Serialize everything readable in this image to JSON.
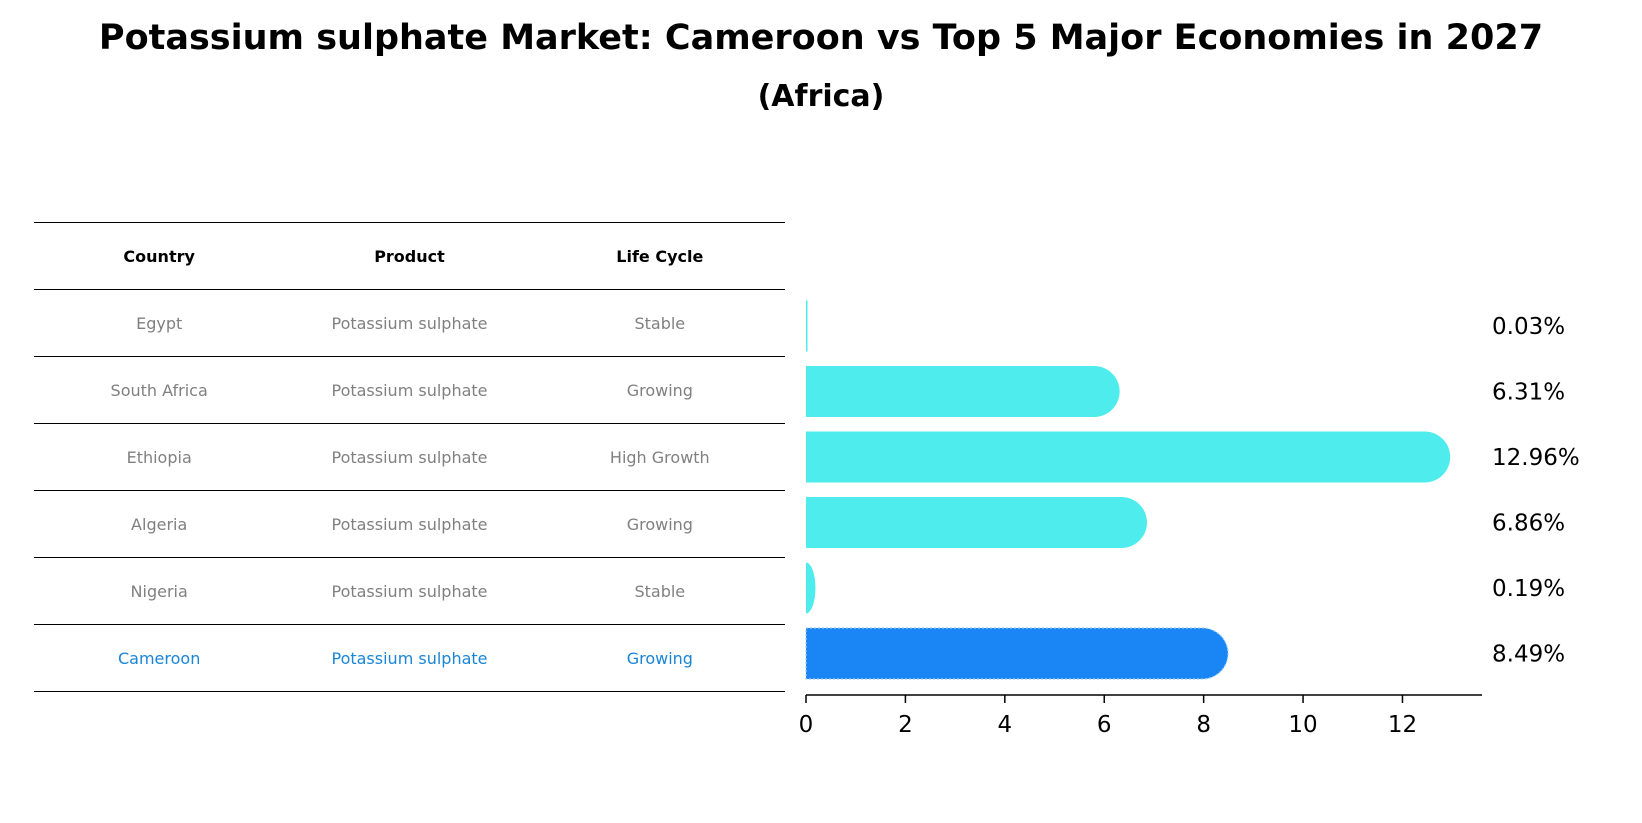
{
  "title": "Potassium sulphate Market: Cameroon vs Top 5 Major Economies in 2027",
  "subtitle": "(Africa)",
  "table": {
    "headers": [
      "Country",
      "Product",
      "Life Cycle"
    ],
    "rows": [
      {
        "country": "Egypt",
        "product": "Potassium sulphate",
        "life_cycle": "Stable"
      },
      {
        "country": "South Africa",
        "product": "Potassium sulphate",
        "life_cycle": "Growing"
      },
      {
        "country": "Ethiopia",
        "product": "Potassium sulphate",
        "life_cycle": "High Growth"
      },
      {
        "country": "Algeria",
        "product": "Potassium sulphate",
        "life_cycle": "Growing"
      },
      {
        "country": "Nigeria",
        "product": "Potassium sulphate",
        "life_cycle": "Stable"
      },
      {
        "country": "Cameroon",
        "product": "Potassium sulphate",
        "life_cycle": "Growing"
      }
    ]
  },
  "colors": {
    "bar": "#4eecec",
    "highlight_bar": "#1a85f5",
    "highlight_text": "#1a85d6",
    "muted_text": "#808080"
  },
  "chart_data": {
    "type": "bar",
    "orientation": "horizontal",
    "categories": [
      "Egypt",
      "South Africa",
      "Ethiopia",
      "Algeria",
      "Nigeria",
      "Cameroon"
    ],
    "values": [
      0.03,
      6.31,
      12.96,
      6.86,
      0.19,
      8.49
    ],
    "value_labels": [
      "0.03%",
      "6.31%",
      "12.96%",
      "6.86%",
      "0.19%",
      "8.49%"
    ],
    "highlight": "Cameroon",
    "xlim": [
      0,
      13.6
    ],
    "xticks": [
      0,
      2,
      4,
      6,
      8,
      10,
      12
    ],
    "title": "Potassium sulphate Market: Cameroon vs Top 5 Major Economies in 2027",
    "subtitle": "(Africa)",
    "xlabel": "",
    "ylabel": ""
  }
}
